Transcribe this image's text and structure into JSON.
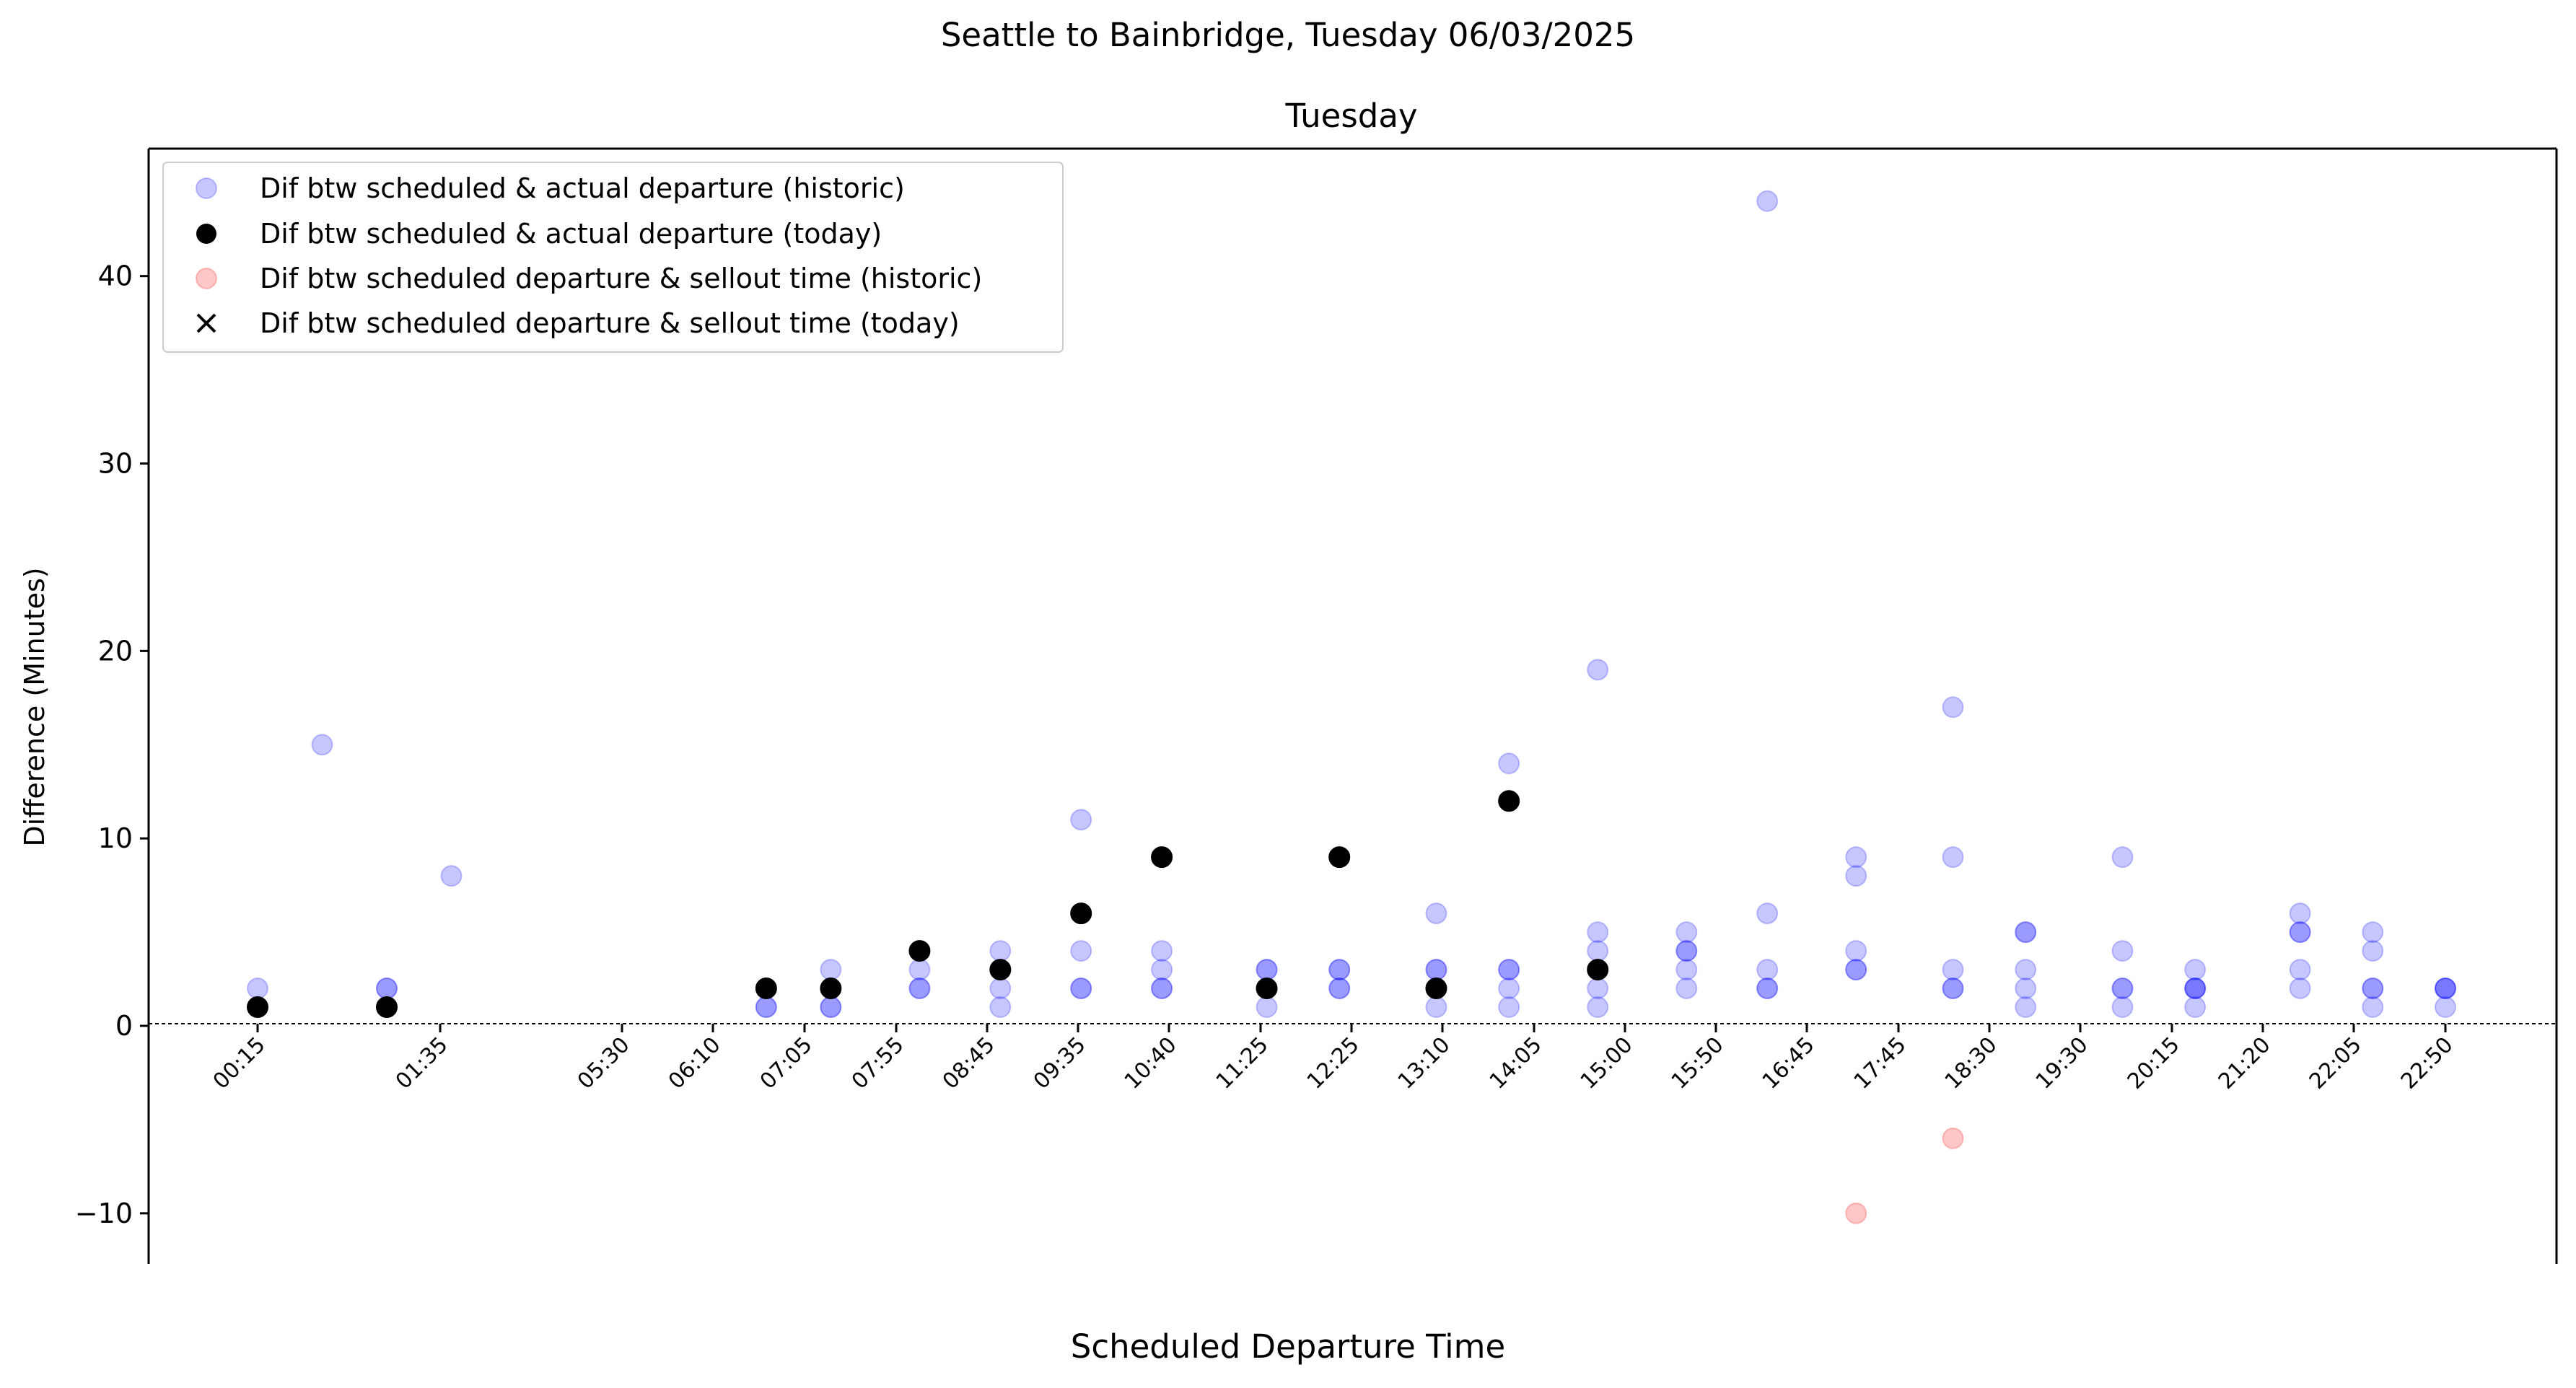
{
  "chart_data": {
    "type": "scatter",
    "suptitle": "Seattle to Bainbridge, Tuesday 06/03/2025",
    "title": "Tuesday",
    "xlabel": "Scheduled Departure Time",
    "ylabel": "Difference (Minutes)",
    "ylim": [
      -12.7,
      46.8
    ],
    "yticks": [
      -10,
      0,
      10,
      20,
      30,
      40
    ],
    "ytick_labels": [
      "−10",
      "0",
      "10",
      "20",
      "30",
      "40"
    ],
    "xticks": [
      "00:15",
      "01:35",
      "05:30",
      "06:10",
      "07:05",
      "07:55",
      "08:45",
      "09:35",
      "10:40",
      "11:25",
      "12:25",
      "13:10",
      "14:05",
      "15:00",
      "15:50",
      "16:45",
      "17:45",
      "18:30",
      "19:30",
      "20:15",
      "21:20",
      "22:05",
      "22:50"
    ],
    "grid": false,
    "zero_line": true,
    "legend_position": "upper-left",
    "colors": {
      "historic_departure": "#0000ff",
      "today_departure": "#000000",
      "historic_sellout": "#ff0000",
      "today_sellout": "#000000"
    },
    "series": [
      {
        "name": "Dif btw scheduled & actual departure (historic)",
        "marker": "circle",
        "color": "#0000ff",
        "alpha": 0.22,
        "points": [
          {
            "x": "00:15",
            "y": 2
          },
          {
            "x": "00:55",
            "y": 15
          },
          {
            "x": "01:35",
            "y": 2
          },
          {
            "x": "01:35",
            "y": 2
          },
          {
            "x": "02:15",
            "y": 8
          },
          {
            "x": "05:30",
            "y": 1
          },
          {
            "x": "05:30",
            "y": 1
          },
          {
            "x": "06:10",
            "y": 3
          },
          {
            "x": "06:10",
            "y": 1
          },
          {
            "x": "06:10",
            "y": 1
          },
          {
            "x": "07:05",
            "y": 3
          },
          {
            "x": "07:05",
            "y": 2
          },
          {
            "x": "07:05",
            "y": 2
          },
          {
            "x": "07:55",
            "y": 4
          },
          {
            "x": "07:55",
            "y": 2
          },
          {
            "x": "07:55",
            "y": 1
          },
          {
            "x": "08:45",
            "y": 11
          },
          {
            "x": "08:45",
            "y": 4
          },
          {
            "x": "08:45",
            "y": 2
          },
          {
            "x": "08:45",
            "y": 2
          },
          {
            "x": "09:35",
            "y": 4
          },
          {
            "x": "09:35",
            "y": 3
          },
          {
            "x": "09:35",
            "y": 2
          },
          {
            "x": "09:35",
            "y": 2
          },
          {
            "x": "10:40",
            "y": 3
          },
          {
            "x": "10:40",
            "y": 3
          },
          {
            "x": "10:40",
            "y": 1
          },
          {
            "x": "11:25",
            "y": 3
          },
          {
            "x": "11:25",
            "y": 3
          },
          {
            "x": "11:25",
            "y": 2
          },
          {
            "x": "11:25",
            "y": 2
          },
          {
            "x": "12:25",
            "y": 6
          },
          {
            "x": "12:25",
            "y": 3
          },
          {
            "x": "12:25",
            "y": 3
          },
          {
            "x": "12:25",
            "y": 1
          },
          {
            "x": "13:10",
            "y": 14
          },
          {
            "x": "13:10",
            "y": 3
          },
          {
            "x": "13:10",
            "y": 3
          },
          {
            "x": "13:10",
            "y": 2
          },
          {
            "x": "13:10",
            "y": 1
          },
          {
            "x": "14:05",
            "y": 19
          },
          {
            "x": "14:05",
            "y": 5
          },
          {
            "x": "14:05",
            "y": 4
          },
          {
            "x": "14:05",
            "y": 2
          },
          {
            "x": "14:05",
            "y": 1
          },
          {
            "x": "15:00",
            "y": 5
          },
          {
            "x": "15:00",
            "y": 4
          },
          {
            "x": "15:00",
            "y": 4
          },
          {
            "x": "15:00",
            "y": 3
          },
          {
            "x": "15:00",
            "y": 2
          },
          {
            "x": "15:50",
            "y": 44
          },
          {
            "x": "15:50",
            "y": 6
          },
          {
            "x": "15:50",
            "y": 3
          },
          {
            "x": "15:50",
            "y": 2
          },
          {
            "x": "15:50",
            "y": 2
          },
          {
            "x": "16:45",
            "y": 9
          },
          {
            "x": "16:45",
            "y": 8
          },
          {
            "x": "16:45",
            "y": 4
          },
          {
            "x": "16:45",
            "y": 3
          },
          {
            "x": "16:45",
            "y": 3
          },
          {
            "x": "17:45",
            "y": 17
          },
          {
            "x": "17:45",
            "y": 9
          },
          {
            "x": "17:45",
            "y": 3
          },
          {
            "x": "17:45",
            "y": 2
          },
          {
            "x": "17:45",
            "y": 2
          },
          {
            "x": "18:30",
            "y": 5
          },
          {
            "x": "18:30",
            "y": 5
          },
          {
            "x": "18:30",
            "y": 3
          },
          {
            "x": "18:30",
            "y": 2
          },
          {
            "x": "18:30",
            "y": 1
          },
          {
            "x": "19:30",
            "y": 9
          },
          {
            "x": "19:30",
            "y": 4
          },
          {
            "x": "19:30",
            "y": 2
          },
          {
            "x": "19:30",
            "y": 2
          },
          {
            "x": "19:30",
            "y": 1
          },
          {
            "x": "20:15",
            "y": 3
          },
          {
            "x": "20:15",
            "y": 2
          },
          {
            "x": "20:15",
            "y": 2
          },
          {
            "x": "20:15",
            "y": 2
          },
          {
            "x": "20:15",
            "y": 1
          },
          {
            "x": "21:20",
            "y": 6
          },
          {
            "x": "21:20",
            "y": 5
          },
          {
            "x": "21:20",
            "y": 5
          },
          {
            "x": "21:20",
            "y": 3
          },
          {
            "x": "21:20",
            "y": 2
          },
          {
            "x": "22:05",
            "y": 5
          },
          {
            "x": "22:05",
            "y": 4
          },
          {
            "x": "22:05",
            "y": 2
          },
          {
            "x": "22:05",
            "y": 2
          },
          {
            "x": "22:05",
            "y": 1
          },
          {
            "x": "22:50",
            "y": 2
          },
          {
            "x": "22:50",
            "y": 2
          },
          {
            "x": "22:50",
            "y": 2
          },
          {
            "x": "22:50",
            "y": 1
          }
        ]
      },
      {
        "name": "Dif btw scheduled & actual departure (today)",
        "marker": "circle",
        "color": "#000000",
        "alpha": 1,
        "points": [
          {
            "x": "00:15",
            "y": 1
          },
          {
            "x": "01:35",
            "y": 1
          },
          {
            "x": "05:30",
            "y": 2
          },
          {
            "x": "06:10",
            "y": 2
          },
          {
            "x": "07:05",
            "y": 4
          },
          {
            "x": "07:55",
            "y": 3
          },
          {
            "x": "08:45",
            "y": 6
          },
          {
            "x": "09:35",
            "y": 9
          },
          {
            "x": "10:40",
            "y": 2
          },
          {
            "x": "11:25",
            "y": 9
          },
          {
            "x": "12:25",
            "y": 2
          },
          {
            "x": "13:10",
            "y": 12
          },
          {
            "x": "14:05",
            "y": 3
          }
        ]
      },
      {
        "name": "Dif btw scheduled departure & sellout time (historic)",
        "marker": "circle",
        "color": "#ff0000",
        "alpha": 0.22,
        "points": [
          {
            "x": "16:45",
            "y": -10
          },
          {
            "x": "17:45",
            "y": -6
          }
        ]
      },
      {
        "name": "Dif btw scheduled departure & sellout time (today)",
        "marker": "x",
        "color": "#000000",
        "alpha": 1,
        "points": []
      }
    ]
  }
}
